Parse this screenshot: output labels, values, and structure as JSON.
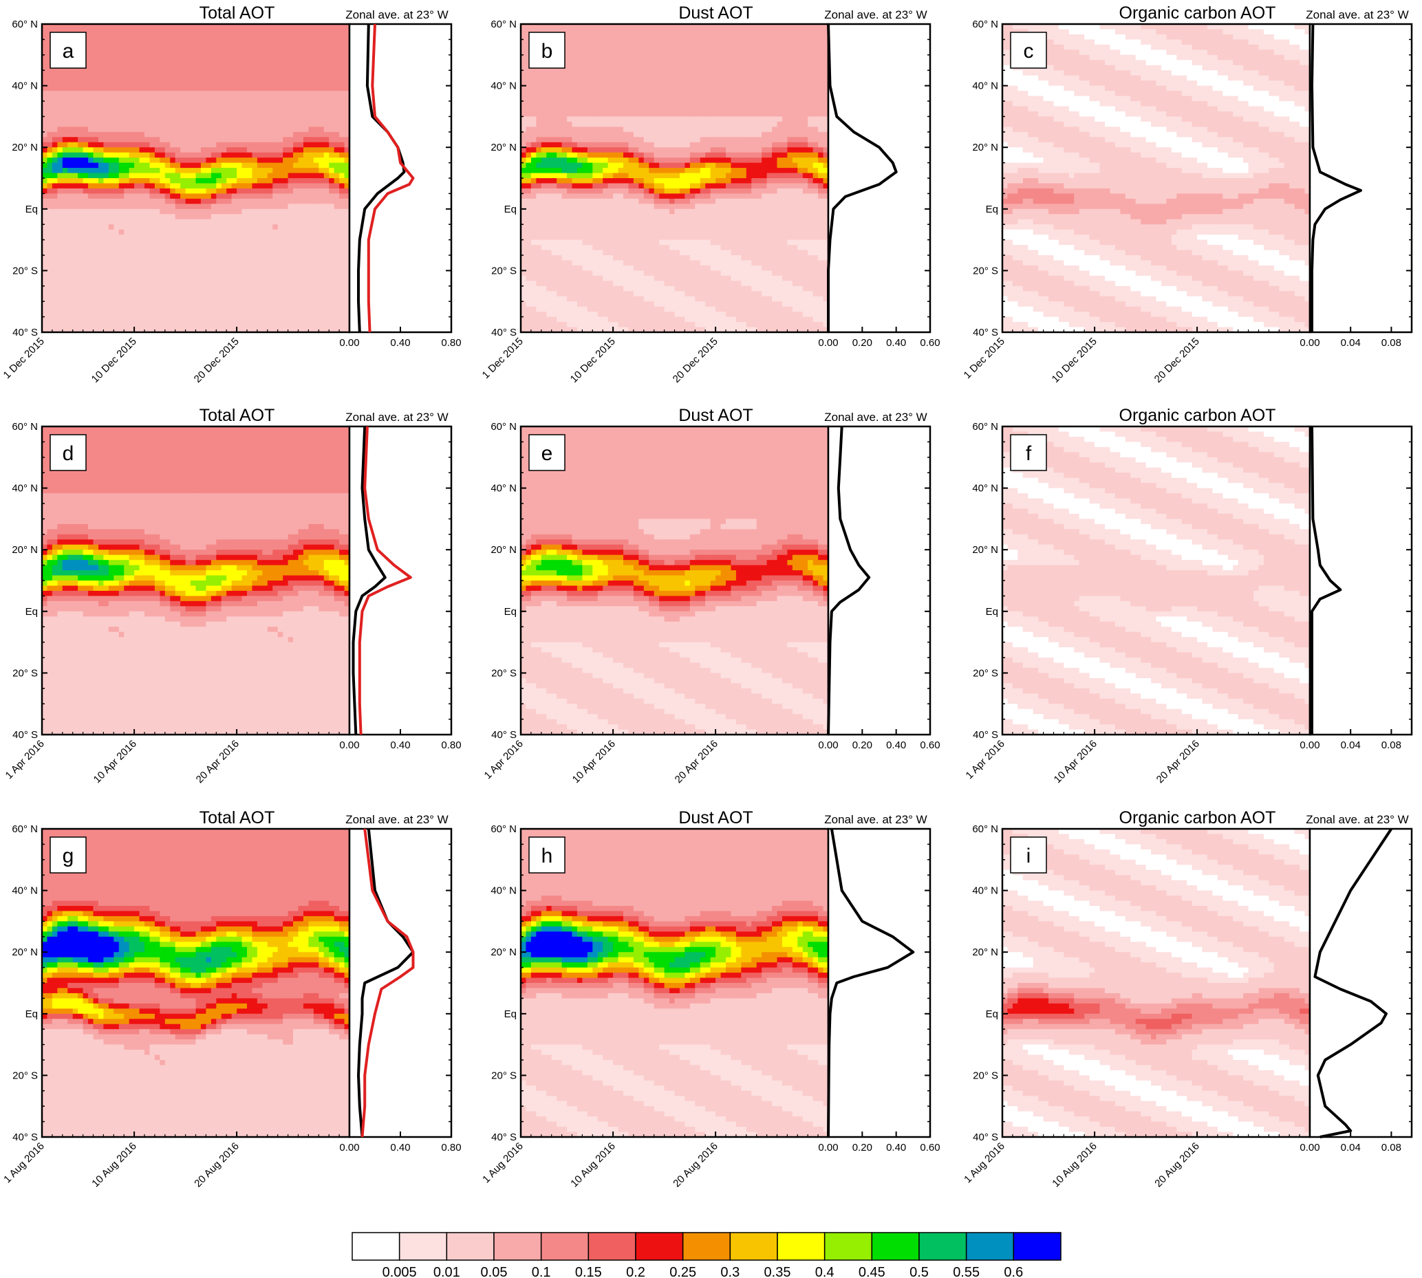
{
  "figure": {
    "titles": {
      "total": "Total AOT",
      "dust": "Dust AOT",
      "oc": "Organic carbon AOT"
    },
    "zonal_title": "Zonal ave. at 23° W",
    "lat_labels": [
      "60° N",
      "40° N",
      "20° N",
      "Eq",
      "20° S",
      "40° S"
    ],
    "rows": [
      {
        "month": "Dec",
        "x_labels": [
          "1 Dec 2015",
          "10 Dec 2015",
          "20 Dec 2015"
        ]
      },
      {
        "month": "Apr",
        "x_labels": [
          "1 Apr 2016",
          "10 Apr 2016",
          "20 Apr 2016"
        ]
      },
      {
        "month": "Aug",
        "x_labels": [
          "1 Aug 2016",
          "10 Aug 2016",
          "20 Aug 2016"
        ]
      }
    ],
    "profile_ticks": {
      "total": [
        "0.00",
        "0.40",
        "0.80"
      ],
      "dust": [
        "0.00",
        "0.20",
        "0.40",
        "0.60"
      ],
      "oc": [
        "0.00",
        "0.04",
        "0.08"
      ]
    },
    "panels": [
      {
        "letter": "a",
        "row": 0,
        "col": 0,
        "title": "Total AOT",
        "zonal": "Zonal ave. at 23° W"
      },
      {
        "letter": "b",
        "row": 0,
        "col": 1,
        "title": "Dust AOT",
        "zonal": "Zonal ave. at 23° W"
      },
      {
        "letter": "c",
        "row": 0,
        "col": 2,
        "title": "Organic carbon AOT",
        "zonal": "Zonal ave. at 23° W"
      },
      {
        "letter": "d",
        "row": 1,
        "col": 0,
        "title": "Total AOT",
        "zonal": "Zonal ave. at 23° W"
      },
      {
        "letter": "e",
        "row": 1,
        "col": 1,
        "title": "Dust AOT",
        "zonal": "Zonal ave. at 23° W"
      },
      {
        "letter": "f",
        "row": 1,
        "col": 2,
        "title": "Organic carbon AOT",
        "zonal": ""
      },
      {
        "letter": "g",
        "row": 2,
        "col": 0,
        "title": "Total AOT",
        "zonal": "Zonal ave. at 23° W"
      },
      {
        "letter": "h",
        "row": 2,
        "col": 1,
        "title": "Dust AOT",
        "zonal": "Zonal ave. at 23° W"
      },
      {
        "letter": "i",
        "row": 2,
        "col": 2,
        "title": "Organic carbon AOT",
        "zonal": "Zonal ave. at 23° W"
      }
    ]
  },
  "colorbar": {
    "levels": [
      "0.005",
      "0.01",
      "0.05",
      "0.1",
      "0.15",
      "0.2",
      "0.25",
      "0.3",
      "0.35",
      "0.4",
      "0.45",
      "0.5",
      "0.55",
      "0.6"
    ],
    "colors": [
      "#ffffff",
      "#fde0e0",
      "#fbcccc",
      "#f8aaaa",
      "#f48888",
      "#f06060",
      "#ee1111",
      "#f49000",
      "#f8c400",
      "#ffff00",
      "#96ee00",
      "#00dd00",
      "#00c060",
      "#0090c0",
      "#0000ff"
    ]
  },
  "chart_data": [
    {
      "type": "heatmap",
      "panel": "a",
      "title": "Total AOT",
      "x_range": [
        "1 Dec 2015",
        "31 Dec 2015"
      ],
      "y_range": [
        -40,
        60
      ],
      "bands": [
        {
          "center_lat": 12,
          "width": 14,
          "peak": 0.5,
          "peak_date": "5 Dec 2015"
        }
      ]
    },
    {
      "type": "line",
      "panel": "a",
      "title": "Zonal ave. at 23° W",
      "xlim": [
        0,
        0.8
      ],
      "series": [
        {
          "color": "#000000",
          "y_lat": [
            60,
            40,
            30,
            25,
            20,
            15,
            12,
            10,
            5,
            0,
            -10,
            -20,
            -30,
            -40
          ],
          "x": [
            0.15,
            0.14,
            0.18,
            0.3,
            0.38,
            0.42,
            0.43,
            0.38,
            0.22,
            0.12,
            0.08,
            0.07,
            0.07,
            0.08
          ]
        },
        {
          "color": "#e02020",
          "y_lat": [
            60,
            40,
            30,
            25,
            20,
            15,
            10,
            8,
            5,
            0,
            -10,
            -20,
            -30,
            -40
          ],
          "x": [
            0.2,
            0.18,
            0.2,
            0.3,
            0.38,
            0.4,
            0.5,
            0.47,
            0.3,
            0.2,
            0.15,
            0.15,
            0.15,
            0.16
          ]
        }
      ]
    },
    {
      "type": "heatmap",
      "panel": "b",
      "title": "Dust AOT",
      "x_range": [
        "1 Dec 2015",
        "31 Dec 2015"
      ],
      "y_range": [
        -40,
        60
      ],
      "bands": [
        {
          "center_lat": 12,
          "width": 13,
          "peak": 0.45,
          "peak_date": "5 Dec 2015"
        }
      ]
    },
    {
      "type": "line",
      "panel": "b",
      "title": "Zonal ave. at 23° W",
      "xlim": [
        0,
        0.6
      ],
      "series": [
        {
          "color": "#000000",
          "y_lat": [
            60,
            40,
            30,
            25,
            20,
            15,
            12,
            8,
            4,
            0,
            -10,
            -20,
            -40
          ],
          "x": [
            0.0,
            0.01,
            0.05,
            0.15,
            0.3,
            0.38,
            0.4,
            0.3,
            0.1,
            0.03,
            0.01,
            0.0,
            0.0
          ]
        }
      ]
    },
    {
      "type": "heatmap",
      "panel": "c",
      "title": "Organic carbon AOT",
      "x_range": [
        "1 Dec 2015",
        "31 Dec 2015"
      ],
      "y_range": [
        -40,
        60
      ],
      "bands": [
        {
          "center_lat": 2,
          "width": 10,
          "peak": 0.1,
          "peak_date": "25 Dec 2015"
        }
      ]
    },
    {
      "type": "line",
      "panel": "c",
      "title": "Zonal ave. at 23° W",
      "xlim": [
        0,
        0.1
      ],
      "series": [
        {
          "color": "#000000",
          "y_lat": [
            60,
            40,
            20,
            12,
            8,
            6,
            3,
            0,
            -5,
            -10,
            -20,
            -40
          ],
          "x": [
            0.003,
            0.002,
            0.003,
            0.01,
            0.035,
            0.05,
            0.03,
            0.015,
            0.005,
            0.003,
            0.002,
            0.002
          ]
        }
      ]
    },
    {
      "type": "heatmap",
      "panel": "d",
      "title": "Total AOT",
      "x_range": [
        "1 Apr 2016",
        "30 Apr 2016"
      ],
      "y_range": [
        -40,
        60
      ],
      "bands": [
        {
          "center_lat": 12,
          "width": 16,
          "peak": 0.45,
          "peak_date": "15 Apr 2016"
        }
      ]
    },
    {
      "type": "line",
      "panel": "d",
      "title": "Zonal ave. at 23° W",
      "xlim": [
        0,
        0.8
      ],
      "series": [
        {
          "color": "#000000",
          "y_lat": [
            60,
            40,
            30,
            20,
            15,
            11,
            8,
            5,
            0,
            -10,
            -20,
            -30,
            -40
          ],
          "x": [
            0.12,
            0.1,
            0.12,
            0.15,
            0.22,
            0.28,
            0.2,
            0.1,
            0.05,
            0.03,
            0.03,
            0.04,
            0.05
          ]
        },
        {
          "color": "#e02020",
          "y_lat": [
            60,
            40,
            30,
            20,
            15,
            11,
            8,
            5,
            0,
            -10,
            -20,
            -30,
            -40
          ],
          "x": [
            0.14,
            0.12,
            0.15,
            0.22,
            0.35,
            0.48,
            0.3,
            0.15,
            0.1,
            0.08,
            0.08,
            0.08,
            0.09
          ]
        }
      ]
    },
    {
      "type": "heatmap",
      "panel": "e",
      "title": "Dust AOT",
      "x_range": [
        "1 Apr 2016",
        "30 Apr 2016"
      ],
      "y_range": [
        -40,
        60
      ],
      "bands": [
        {
          "center_lat": 12,
          "width": 16,
          "peak": 0.4,
          "peak_date": "15 Apr 2016"
        }
      ]
    },
    {
      "type": "line",
      "panel": "e",
      "title": "Zonal ave. at 23° W",
      "xlim": [
        0,
        0.6
      ],
      "series": [
        {
          "color": "#000000",
          "y_lat": [
            60,
            50,
            40,
            30,
            25,
            20,
            15,
            11,
            7,
            3,
            0,
            -10,
            -40
          ],
          "x": [
            0.08,
            0.07,
            0.06,
            0.07,
            0.1,
            0.13,
            0.18,
            0.24,
            0.18,
            0.07,
            0.02,
            0.01,
            0.0
          ]
        }
      ]
    },
    {
      "type": "heatmap",
      "panel": "f",
      "title": "Organic carbon AOT",
      "x_range": [
        "1 Apr 2016",
        "30 Apr 2016"
      ],
      "y_range": [
        -40,
        60
      ],
      "bands": [
        {
          "center_lat": 8,
          "width": 9,
          "peak": 0.02,
          "peak_date": "15 Apr 2016"
        }
      ]
    },
    {
      "type": "line",
      "panel": "f",
      "title": "",
      "xlim": [
        0,
        0.1
      ],
      "series": [
        {
          "color": "#000000",
          "y_lat": [
            60,
            30,
            20,
            15,
            10,
            7,
            4,
            0,
            -40
          ],
          "x": [
            0.002,
            0.003,
            0.008,
            0.01,
            0.02,
            0.03,
            0.01,
            0.002,
            0.002
          ]
        }
      ]
    },
    {
      "type": "heatmap",
      "panel": "g",
      "title": "Total AOT",
      "x_range": [
        "1 Aug 2016",
        "31 Aug 2016"
      ],
      "y_range": [
        -40,
        60
      ],
      "bands": [
        {
          "center_lat": 20,
          "width": 20,
          "peak": 0.6,
          "peak_date": "2 Aug 2016"
        },
        {
          "center_lat": 0,
          "width": 10,
          "peak": 0.3,
          "peak_date": "10 Aug 2016"
        }
      ]
    },
    {
      "type": "line",
      "panel": "g",
      "title": "Zonal ave. at 23° W",
      "xlim": [
        0,
        0.8
      ],
      "series": [
        {
          "color": "#000000",
          "y_lat": [
            60,
            40,
            30,
            25,
            20,
            15,
            10,
            5,
            0,
            -10,
            -20,
            -30,
            -40
          ],
          "x": [
            0.15,
            0.2,
            0.3,
            0.42,
            0.5,
            0.38,
            0.12,
            0.1,
            0.1,
            0.08,
            0.07,
            0.08,
            0.1
          ]
        },
        {
          "color": "#e02020",
          "y_lat": [
            60,
            40,
            30,
            25,
            20,
            15,
            12,
            8,
            0,
            -10,
            -20,
            -30,
            -40
          ],
          "x": [
            0.12,
            0.18,
            0.3,
            0.45,
            0.5,
            0.5,
            0.4,
            0.25,
            0.2,
            0.15,
            0.12,
            0.12,
            0.1
          ]
        }
      ]
    },
    {
      "type": "heatmap",
      "panel": "h",
      "title": "Dust AOT",
      "x_range": [
        "1 Aug 2016",
        "31 Aug 2016"
      ],
      "y_range": [
        -40,
        60
      ],
      "bands": [
        {
          "center_lat": 20,
          "width": 20,
          "peak": 0.6,
          "peak_date": "2 Aug 2016"
        }
      ]
    },
    {
      "type": "line",
      "panel": "h",
      "title": "Zonal ave. at 23° W",
      "xlim": [
        0,
        0.6
      ],
      "series": [
        {
          "color": "#000000",
          "y_lat": [
            60,
            40,
            30,
            25,
            20,
            15,
            12,
            10,
            5,
            0,
            -10,
            -20,
            -40
          ],
          "x": [
            0.02,
            0.08,
            0.2,
            0.38,
            0.5,
            0.35,
            0.15,
            0.05,
            0.02,
            0.01,
            0.005,
            0.003,
            0.0
          ]
        }
      ]
    },
    {
      "type": "heatmap",
      "panel": "i",
      "title": "Organic carbon AOT",
      "x_range": [
        "1 Aug 2016",
        "31 Aug 2016"
      ],
      "y_range": [
        -40,
        60
      ],
      "bands": [
        {
          "center_lat": 0,
          "width": 12,
          "peak": 0.2,
          "peak_date": "5 Aug 2016"
        }
      ]
    },
    {
      "type": "line",
      "panel": "i",
      "title": "Zonal ave. at 23° W",
      "xlim": [
        0,
        0.1
      ],
      "series": [
        {
          "color": "#000000",
          "y_lat": [
            60,
            55,
            50,
            40,
            30,
            20,
            12,
            8,
            4,
            0,
            -3,
            -10,
            -15,
            -20,
            -30,
            -36,
            -38,
            -40
          ],
          "x": [
            0.08,
            0.07,
            0.06,
            0.04,
            0.025,
            0.01,
            0.005,
            0.03,
            0.06,
            0.075,
            0.07,
            0.04,
            0.015,
            0.008,
            0.015,
            0.035,
            0.04,
            0.01
          ]
        }
      ]
    }
  ]
}
